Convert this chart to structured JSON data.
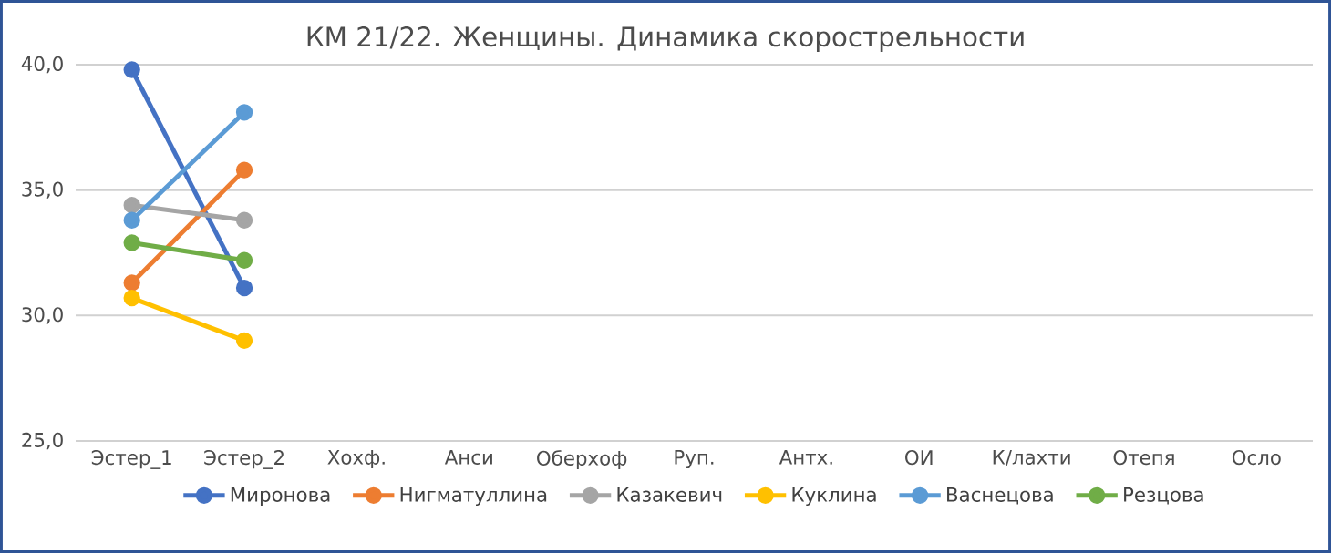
{
  "chart_data": {
    "type": "line",
    "title": "КМ 21/22. Женщины. Динамика скорострельности",
    "categories": [
      "Эстер_1",
      "Эстер_2",
      "Хохф.",
      "Анси",
      "Оберхоф",
      "Руп.",
      "Антх.",
      "ОИ",
      "К/лахти",
      "Отепя",
      "Осло"
    ],
    "series": [
      {
        "name": "Миронова",
        "color": "#4472c4",
        "values": [
          39.8,
          31.1,
          null,
          null,
          null,
          null,
          null,
          null,
          null,
          null,
          null
        ]
      },
      {
        "name": "Нигматуллина",
        "color": "#ed7d31",
        "values": [
          31.3,
          35.8,
          null,
          null,
          null,
          null,
          null,
          null,
          null,
          null,
          null
        ]
      },
      {
        "name": "Казакевич",
        "color": "#a5a5a5",
        "values": [
          34.4,
          33.8,
          null,
          null,
          null,
          null,
          null,
          null,
          null,
          null,
          null
        ]
      },
      {
        "name": "Куклина",
        "color": "#ffc000",
        "values": [
          30.7,
          29.0,
          null,
          null,
          null,
          null,
          null,
          null,
          null,
          null,
          null
        ]
      },
      {
        "name": "Васнецова",
        "color": "#5b9bd5",
        "values": [
          33.8,
          38.1,
          null,
          null,
          null,
          null,
          null,
          null,
          null,
          null,
          null
        ]
      },
      {
        "name": "Резцова",
        "color": "#70ad47",
        "values": [
          32.9,
          32.2,
          null,
          null,
          null,
          null,
          null,
          null,
          null,
          null,
          null
        ]
      }
    ],
    "ylim": [
      25,
      40
    ],
    "yticks": [
      {
        "value": 25,
        "label": "25,0"
      },
      {
        "value": 30,
        "label": "30,0"
      },
      {
        "value": 35,
        "label": "35,0"
      },
      {
        "value": 40,
        "label": "40,0"
      }
    ],
    "grid": "y",
    "legend": "bottom",
    "marker": "circle",
    "line_style": "solid"
  }
}
